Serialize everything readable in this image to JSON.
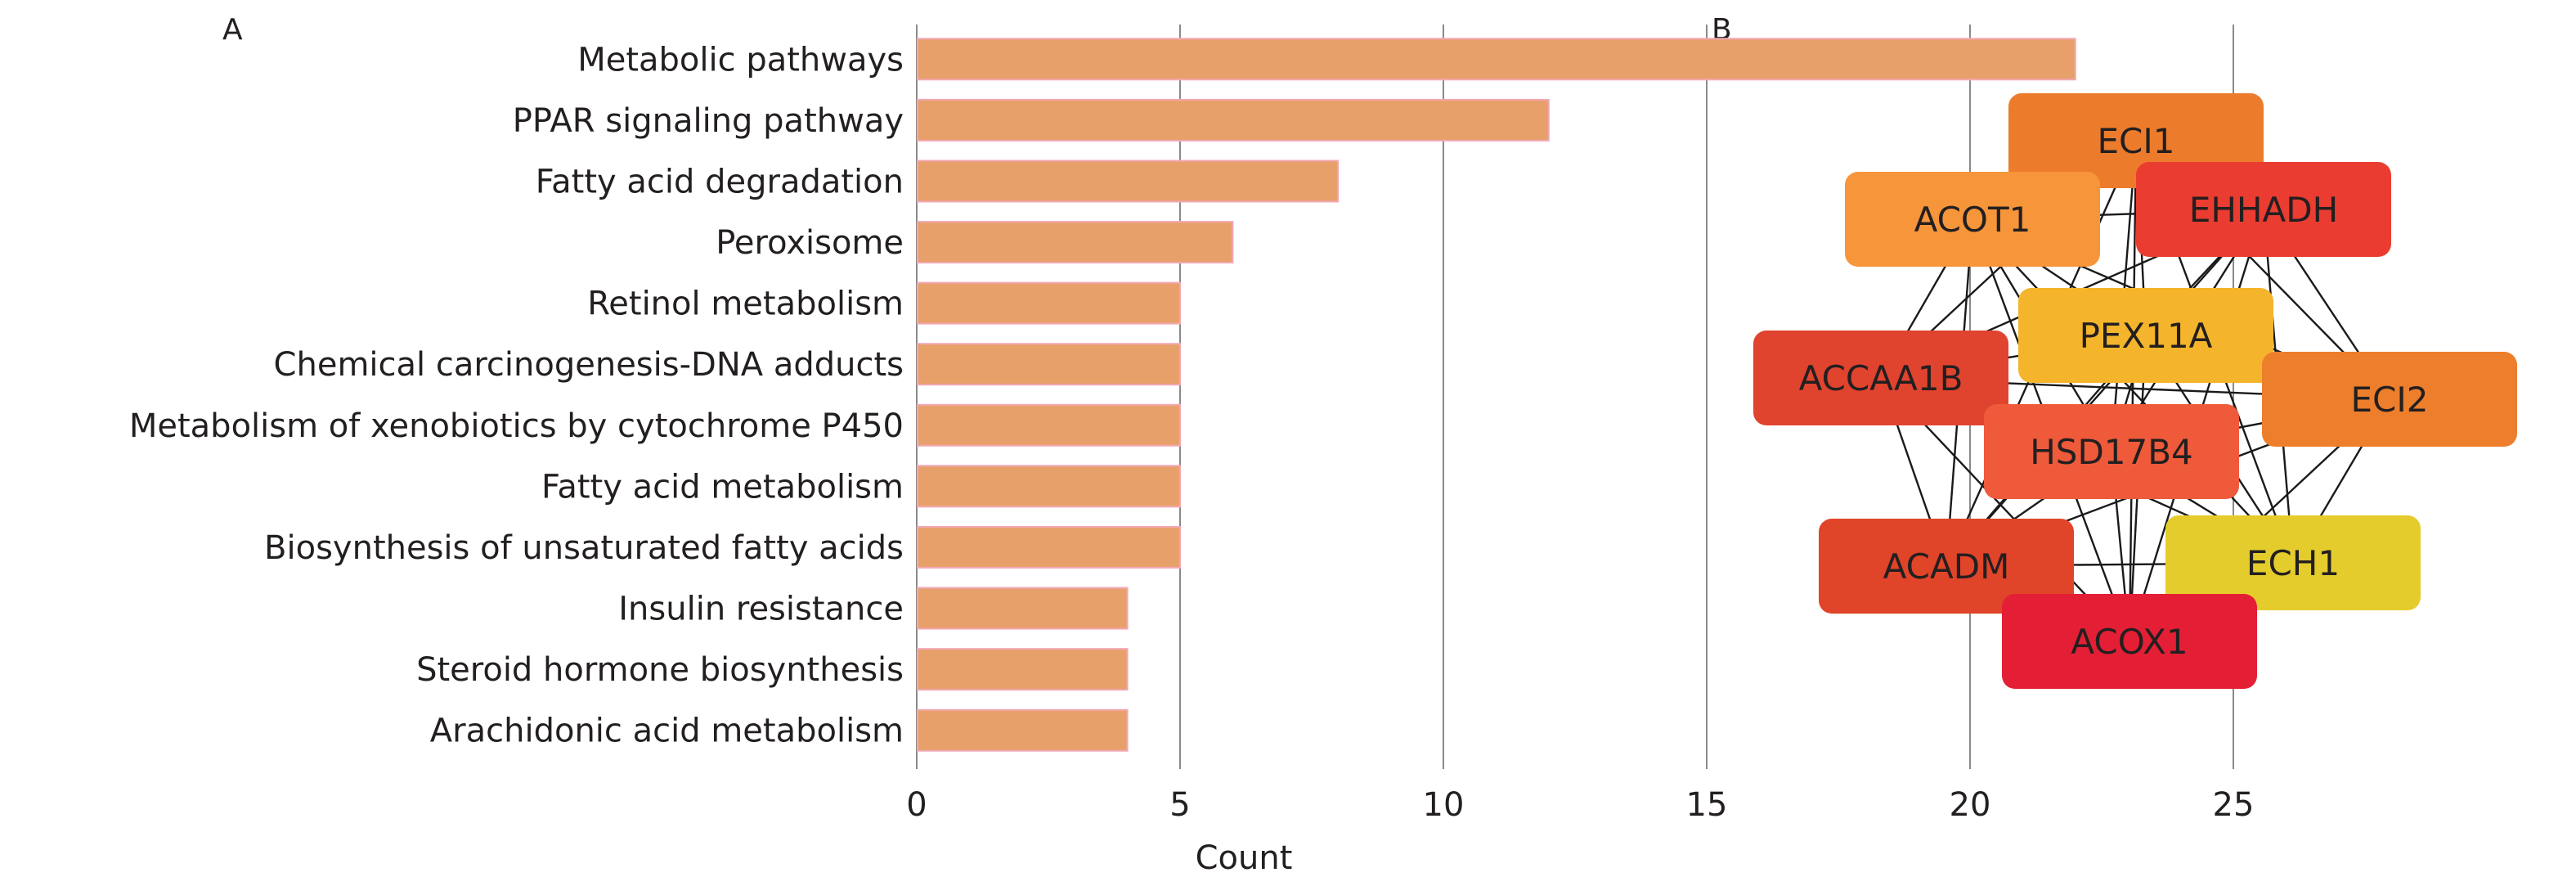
{
  "panels": {
    "a_label": "A",
    "b_label": "B"
  },
  "chart_data": [
    {
      "type": "bar",
      "orientation": "horizontal",
      "categories": [
        "Metabolic pathways",
        "PPAR signaling pathway",
        "Fatty acid degradation",
        "Peroxisome",
        "Retinol metabolism",
        "Chemical carcinogenesis-DNA adducts",
        "Metabolism of xenobiotics by cytochrome P450",
        "Fatty acid metabolism",
        "Biosynthesis of unsaturated fatty acids",
        "Insulin resistance",
        "Steroid hormone biosynthesis",
        "Arachidonic acid metabolism"
      ],
      "values": [
        22,
        12,
        8,
        6,
        5,
        5,
        5,
        5,
        5,
        4,
        4,
        4
      ],
      "xlabel": "Count",
      "ylabel": "",
      "xlim": [
        0,
        25
      ],
      "xticks": [
        "0",
        "5",
        "10",
        "15",
        "20",
        "25"
      ],
      "grid": "vertical",
      "bar_color": "#e8a06a",
      "bar_edge_color": "#f2a8b4"
    },
    {
      "type": "network",
      "nodes": [
        {
          "id": "ECI1",
          "label": "ECI1",
          "color": "#ec7c2c"
        },
        {
          "id": "ACOT1",
          "label": "ACOT1",
          "color": "#f7953a"
        },
        {
          "id": "EHHADH",
          "label": "EHHADH",
          "color": "#ea3c30"
        },
        {
          "id": "PEX11A",
          "label": "PEX11A",
          "color": "#f4b52c"
        },
        {
          "id": "ACCAA1B",
          "label": "ACCAA1B",
          "color": "#e0432e"
        },
        {
          "id": "ECI2",
          "label": "ECI2",
          "color": "#ec7e2c"
        },
        {
          "id": "HSD17B4",
          "label": "HSD17B4",
          "color": "#ef5a3a"
        },
        {
          "id": "ACADM",
          "label": "ACADM",
          "color": "#e04429"
        },
        {
          "id": "ECH1",
          "label": "ECH1",
          "color": "#e4cc2c"
        },
        {
          "id": "ACOX1",
          "label": "ACOX1",
          "color": "#e41f35"
        }
      ],
      "edges": "complete"
    }
  ]
}
